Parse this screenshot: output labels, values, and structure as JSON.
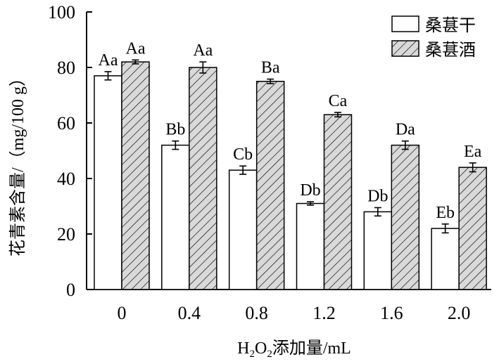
{
  "chart_data": {
    "type": "bar",
    "xlabel_parts": {
      "h": "H",
      "sub1": "2",
      "o": "O",
      "sub2": "2",
      "rest": "添加量/mL"
    },
    "ylabel": "花青素含量/（mg/100 g）",
    "categories": [
      "0",
      "0.4",
      "0.8",
      "1.2",
      "1.6",
      "2.0"
    ],
    "ylim": [
      0,
      100
    ],
    "yticks": [
      "0",
      "20",
      "40",
      "60",
      "80",
      "100"
    ],
    "legend_position": "top-right",
    "series": [
      {
        "name": "桑葚干",
        "fill": "white",
        "values": [
          77,
          52,
          43,
          31,
          28,
          22
        ],
        "errors": [
          1.5,
          1.5,
          1.5,
          0.6,
          1.5,
          1.6
        ],
        "labels": [
          "Aa",
          "Bb",
          "Cb",
          "Db",
          "Db",
          "Eb"
        ]
      },
      {
        "name": "桑葚酒",
        "fill": "hatched",
        "values": [
          82,
          80,
          75,
          63,
          52,
          44
        ],
        "errors": [
          0.7,
          2.0,
          0.8,
          0.8,
          1.5,
          1.6
        ],
        "labels": [
          "Aa",
          "Aa",
          "Ba",
          "Ca",
          "Da",
          "Ea"
        ]
      }
    ]
  },
  "colors": {
    "hatch_bg": "#d9d9d9",
    "hatch_line": "#000000",
    "bar_edge": "#000000"
  }
}
